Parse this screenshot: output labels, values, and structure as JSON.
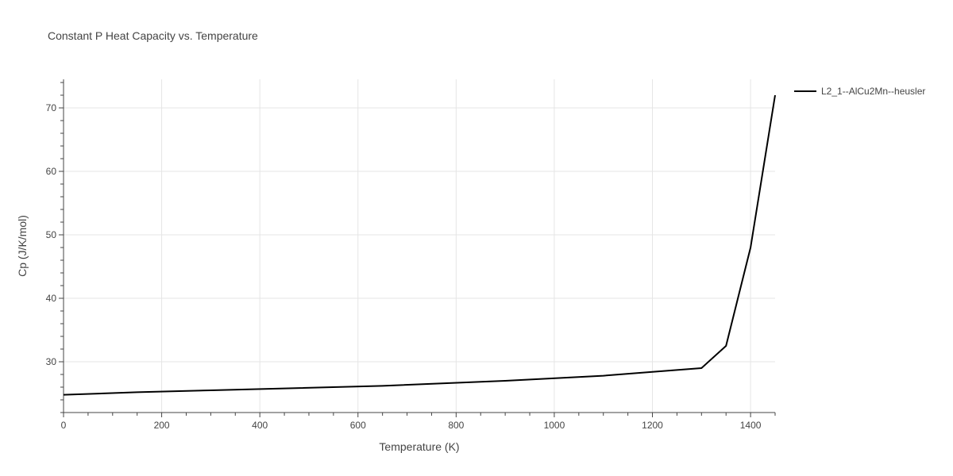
{
  "chart_data": {
    "type": "line",
    "title": "Constant P Heat Capacity vs. Temperature",
    "xlabel": "Temperature (K)",
    "ylabel": "Cp (J/K/mol)",
    "xlim": [
      0,
      1450
    ],
    "ylim": [
      22,
      74.5
    ],
    "xticks": [
      0,
      200,
      400,
      600,
      800,
      1000,
      1200,
      1400
    ],
    "yticks": [
      30,
      40,
      50,
      60,
      70
    ],
    "xminor_step": 50,
    "yminor_step": 2,
    "grid": true,
    "legend_position": "top-right outside",
    "series": [
      {
        "name": "L2_1--AlCu2Mn--heusler",
        "color": "#000000",
        "x": [
          0,
          150,
          300,
          450,
          650,
          900,
          1100,
          1200,
          1300,
          1350,
          1400,
          1450
        ],
        "y": [
          24.8,
          25.2,
          25.5,
          25.8,
          26.2,
          27.0,
          27.8,
          28.4,
          29.0,
          32.5,
          48.0,
          72.0
        ]
      }
    ]
  }
}
